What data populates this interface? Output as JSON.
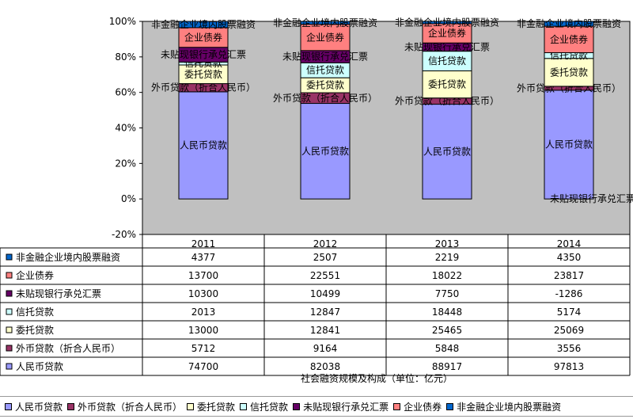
{
  "chart_data": {
    "type": "bar",
    "stacked": "percent",
    "categories": [
      "2011",
      "2012",
      "2013",
      "2014"
    ],
    "xlabel": "社会融资规模及构成（单位：亿元）",
    "ylim": [
      -20,
      100
    ],
    "yticks": [
      "-20%",
      "0%",
      "20%",
      "40%",
      "60%",
      "80%",
      "100%"
    ],
    "series": [
      {
        "name": "人民币贷款",
        "values": [
          74700,
          82038,
          88917,
          97813
        ],
        "color": "#9999ff"
      },
      {
        "name": "外币贷款（折合人民币）",
        "values": [
          5712,
          9164,
          5848,
          3556
        ],
        "color": "#993366"
      },
      {
        "name": "委托贷款",
        "values": [
          13000,
          12841,
          25465,
          25069
        ],
        "color": "#ffffcc"
      },
      {
        "name": "信托贷款",
        "values": [
          2013,
          12847,
          18448,
          5174
        ],
        "color": "#ccffff"
      },
      {
        "name": "未贴现银行承兑汇票",
        "values": [
          10300,
          10499,
          7750,
          -1286
        ],
        "color": "#660066"
      },
      {
        "name": "企业债券",
        "values": [
          13700,
          22551,
          18022,
          23817
        ],
        "color": "#ff8080"
      },
      {
        "name": "非金融企业境内股票融资",
        "values": [
          4377,
          2507,
          2219,
          4350
        ],
        "color": "#0066cc"
      }
    ],
    "grid": false,
    "legend_position": "bottom",
    "plot_background": "#c0c0c0"
  }
}
